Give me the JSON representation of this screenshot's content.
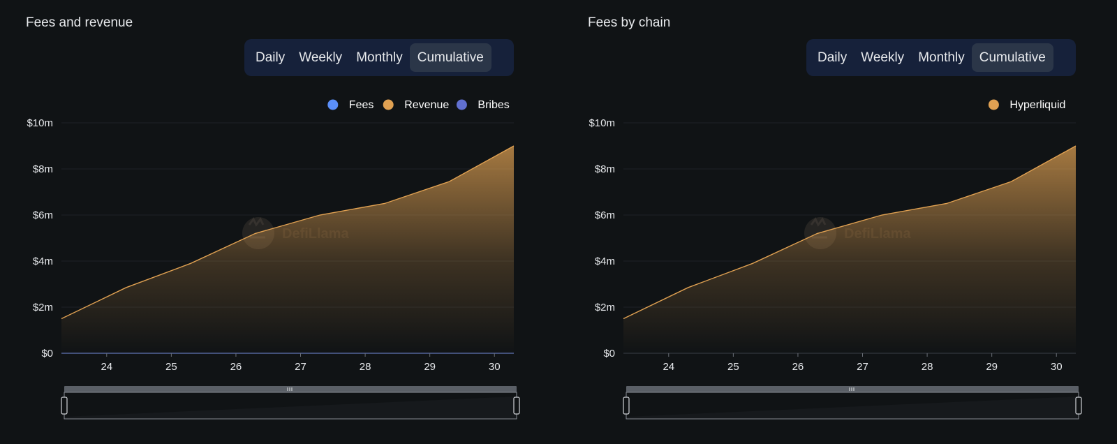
{
  "colors": {
    "background": "#101315",
    "tabs_bg": "#16213a",
    "tab_active_bg": "#2b3648",
    "fees": "#5b8ff9",
    "revenue": "#e0a152",
    "bribes": "#6170d0",
    "hyperliquid": "#e0a152",
    "grid": "#1e2226"
  },
  "panels": [
    {
      "title": "Fees and revenue",
      "tabs": [
        "Daily",
        "Weekly",
        "Monthly",
        "Cumulative"
      ],
      "active_tab": "Cumulative",
      "watermark": "DefiLlama"
    },
    {
      "title": "Fees by chain",
      "tabs": [
        "Daily",
        "Weekly",
        "Monthly",
        "Cumulative"
      ],
      "active_tab": "Cumulative",
      "watermark": "DefiLlama"
    }
  ],
  "chart_data": [
    {
      "type": "area",
      "title": "Fees and revenue",
      "x": [
        23.3,
        24.3,
        25.3,
        26.3,
        27.3,
        28.3,
        29.3,
        30.3
      ],
      "xticks": [
        "24",
        "25",
        "26",
        "27",
        "28",
        "29",
        "30"
      ],
      "xtick_values": [
        24,
        25,
        26,
        27,
        28,
        29,
        30
      ],
      "xlim": [
        23.3,
        30.3
      ],
      "ylim": [
        0,
        10
      ],
      "yticks": [
        "$0",
        "$2m",
        "$4m",
        "$6m",
        "$8m",
        "$10m"
      ],
      "ytick_values": [
        0,
        2,
        4,
        6,
        8,
        10
      ],
      "legend": [
        "Fees",
        "Revenue",
        "Bribes"
      ],
      "legend_position": "top-right",
      "grid": true,
      "series": [
        {
          "name": "Fees",
          "color": "#5b8ff9",
          "values": [
            0,
            0,
            0,
            0,
            0,
            0,
            0,
            0
          ]
        },
        {
          "name": "Revenue",
          "color": "#e0a152",
          "values": [
            1.5,
            2.85,
            3.9,
            5.2,
            6.0,
            6.5,
            7.45,
            9.0
          ]
        },
        {
          "name": "Bribes",
          "color": "#6170d0",
          "values": [
            0,
            0,
            0,
            0,
            0,
            0,
            0,
            0
          ]
        }
      ]
    },
    {
      "type": "area",
      "title": "Fees by chain",
      "x": [
        23.3,
        24.3,
        25.3,
        26.3,
        27.3,
        28.3,
        29.3,
        30.3
      ],
      "xticks": [
        "24",
        "25",
        "26",
        "27",
        "28",
        "29",
        "30"
      ],
      "xtick_values": [
        24,
        25,
        26,
        27,
        28,
        29,
        30
      ],
      "xlim": [
        23.3,
        30.3
      ],
      "ylim": [
        0,
        10
      ],
      "yticks": [
        "$0",
        "$2m",
        "$4m",
        "$6m",
        "$8m",
        "$10m"
      ],
      "ytick_values": [
        0,
        2,
        4,
        6,
        8,
        10
      ],
      "legend": [
        "Hyperliquid"
      ],
      "legend_position": "top-right",
      "grid": true,
      "series": [
        {
          "name": "Hyperliquid",
          "color": "#e0a152",
          "values": [
            1.5,
            2.85,
            3.9,
            5.2,
            6.0,
            6.5,
            7.45,
            9.0
          ]
        }
      ]
    }
  ]
}
